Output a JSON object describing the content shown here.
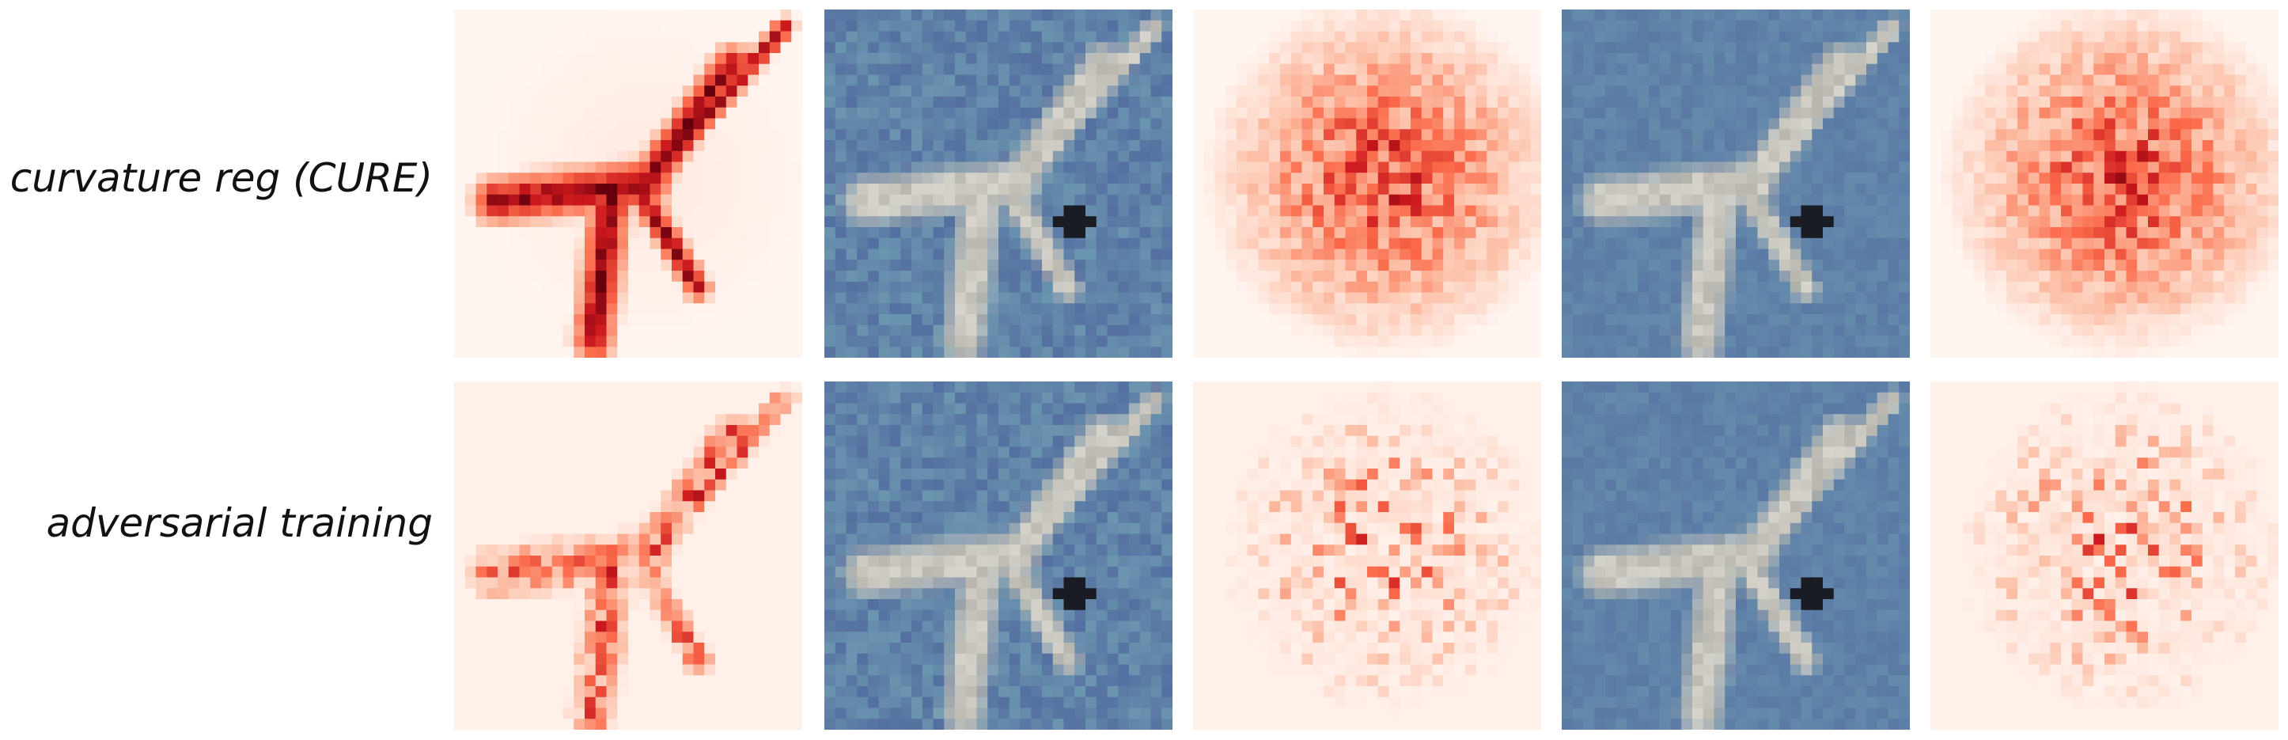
{
  "rows": [
    {
      "label": "curvature reg (CURE)"
    },
    {
      "label": "adversarial training"
    }
  ],
  "panels": [
    {
      "kind": "heatmap",
      "colormap": "Reds"
    },
    {
      "kind": "photo",
      "subject": "airplane"
    },
    {
      "kind": "heatmap",
      "colormap": "Reds"
    },
    {
      "kind": "photo",
      "subject": "airplane"
    },
    {
      "kind": "heatmap",
      "colormap": "Reds"
    }
  ],
  "colors": {
    "background": "#ffffff",
    "sky": "#5f86a8",
    "heat_low": "#fff5f0",
    "heat_high": "#67000d"
  }
}
